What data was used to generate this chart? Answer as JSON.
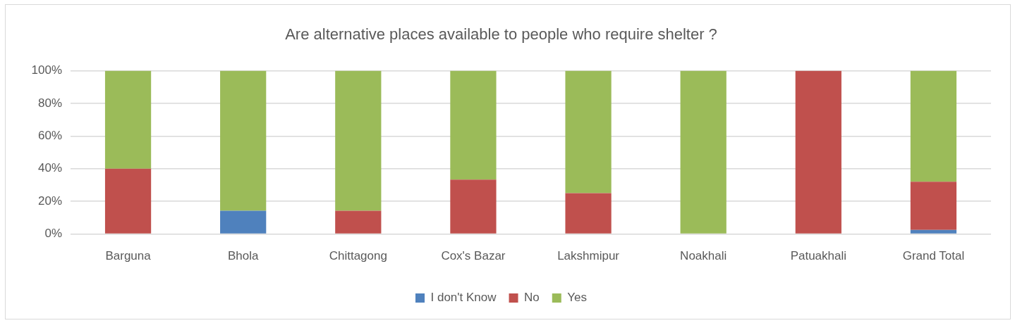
{
  "chart_data": {
    "type": "bar",
    "title": "Are alternative places available to people who require shelter ?",
    "categories": [
      "Barguna",
      "Bhola",
      "Chittagong",
      "Cox's Bazar",
      "Lakshmipur",
      "Noakhali",
      "Patuakhali",
      "Grand Total"
    ],
    "series": [
      {
        "name": "I don't Know",
        "color": "#4f81bd",
        "values": [
          0,
          14.3,
          0,
          0,
          0,
          0,
          0,
          2.5
        ]
      },
      {
        "name": "No",
        "color": "#c0504d",
        "values": [
          40,
          0,
          14.3,
          33.3,
          25,
          0,
          100,
          29.5
        ]
      },
      {
        "name": "Yes",
        "color": "#9bbb59",
        "values": [
          60,
          85.7,
          85.7,
          66.7,
          75,
          100,
          0,
          68
        ]
      }
    ],
    "stacked": true,
    "ylim": [
      0,
      100
    ],
    "yticks": [
      {
        "value": 0,
        "label": "0%"
      },
      {
        "value": 20,
        "label": "20%"
      },
      {
        "value": 40,
        "label": "40%"
      },
      {
        "value": 60,
        "label": "60%"
      },
      {
        "value": 80,
        "label": "80%"
      },
      {
        "value": 100,
        "label": "100%"
      }
    ],
    "grid": "y",
    "legend": "bottom"
  }
}
